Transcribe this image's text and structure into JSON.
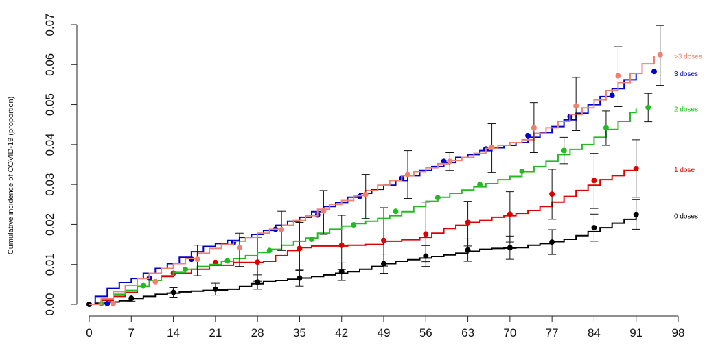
{
  "chart_data": {
    "type": "line",
    "ylabel": "Cumulative incidence of COVID-19 (proportion)",
    "xlabel": "",
    "xlim": [
      0,
      98
    ],
    "ylim": [
      0,
      0.07
    ],
    "x_ticks": [
      "0",
      "7",
      "14",
      "21",
      "28",
      "35",
      "42",
      "49",
      "56",
      "63",
      "70",
      "77",
      "84",
      "91",
      "98"
    ],
    "y_ticks": [
      "0.00",
      "0.01",
      "0.02",
      "0.03",
      "0.04",
      "0.05",
      "0.06",
      "0.07"
    ],
    "grid": false,
    "legend": "inline labels at right end of each curve",
    "series": [
      {
        "name": "0 doses",
        "color": "#000000",
        "step_x": [
          0,
          1,
          3,
          5,
          7,
          9,
          11,
          13,
          15,
          17,
          19,
          21,
          23,
          25,
          27,
          29,
          31,
          33,
          35,
          37,
          39,
          41,
          43,
          45,
          47,
          49,
          51,
          53,
          55,
          57,
          59,
          61,
          63,
          65,
          67,
          69,
          71,
          73,
          75,
          77,
          79,
          81,
          83,
          85,
          87,
          89,
          91
        ],
        "step_y": [
          0,
          0.0003,
          0.0006,
          0.0009,
          0.0015,
          0.002,
          0.0025,
          0.0028,
          0.0031,
          0.0033,
          0.0035,
          0.0036,
          0.0038,
          0.0045,
          0.0052,
          0.0057,
          0.006,
          0.0063,
          0.0066,
          0.007,
          0.0074,
          0.0078,
          0.0082,
          0.0088,
          0.0095,
          0.0102,
          0.0108,
          0.0112,
          0.0116,
          0.012,
          0.0124,
          0.0128,
          0.0133,
          0.0138,
          0.014,
          0.0141,
          0.0142,
          0.0148,
          0.0152,
          0.0157,
          0.0163,
          0.0172,
          0.0182,
          0.0192,
          0.0203,
          0.0213,
          0.0222
        ],
        "points": [
          {
            "x": 0,
            "y": 0.0,
            "lo": 0.0,
            "hi": 0.0
          },
          {
            "x": 7,
            "y": 0.0015,
            "lo": 0.0008,
            "hi": 0.0023
          },
          {
            "x": 14,
            "y": 0.003,
            "lo": 0.0018,
            "hi": 0.0042
          },
          {
            "x": 21,
            "y": 0.0038,
            "lo": 0.0023,
            "hi": 0.0053
          },
          {
            "x": 28,
            "y": 0.0056,
            "lo": 0.0038,
            "hi": 0.0074
          },
          {
            "x": 35,
            "y": 0.0066,
            "lo": 0.0046,
            "hi": 0.0086
          },
          {
            "x": 42,
            "y": 0.0082,
            "lo": 0.006,
            "hi": 0.0104
          },
          {
            "x": 49,
            "y": 0.0102,
            "lo": 0.0078,
            "hi": 0.0126
          },
          {
            "x": 56,
            "y": 0.0121,
            "lo": 0.0095,
            "hi": 0.0147
          },
          {
            "x": 63,
            "y": 0.0136,
            "lo": 0.0108,
            "hi": 0.0164
          },
          {
            "x": 70,
            "y": 0.0142,
            "lo": 0.0113,
            "hi": 0.0171
          },
          {
            "x": 77,
            "y": 0.0156,
            "lo": 0.0125,
            "hi": 0.0187
          },
          {
            "x": 84,
            "y": 0.0192,
            "lo": 0.0158,
            "hi": 0.0226
          },
          {
            "x": 91,
            "y": 0.0225,
            "lo": 0.0188,
            "hi": 0.0262
          }
        ]
      },
      {
        "name": "1 dose",
        "color": "#dd0000",
        "step_x": [
          0,
          2,
          4,
          6,
          8,
          10,
          12,
          14,
          17,
          20,
          24,
          27,
          29,
          31,
          33,
          35,
          37,
          40,
          43,
          46,
          49,
          52,
          55,
          57,
          59,
          61,
          63,
          65,
          67,
          69,
          71,
          73,
          75,
          77,
          79,
          81,
          83,
          85,
          87,
          89,
          91
        ],
        "step_y": [
          0,
          0.001,
          0.002,
          0.003,
          0.0045,
          0.006,
          0.007,
          0.0078,
          0.0088,
          0.0098,
          0.0105,
          0.0105,
          0.0108,
          0.0122,
          0.0135,
          0.0142,
          0.0146,
          0.0146,
          0.0148,
          0.015,
          0.0158,
          0.0162,
          0.0168,
          0.0178,
          0.019,
          0.0198,
          0.0205,
          0.021,
          0.0218,
          0.0222,
          0.0228,
          0.0235,
          0.0245,
          0.0256,
          0.027,
          0.0285,
          0.0298,
          0.0312,
          0.0322,
          0.0335,
          0.0338
        ],
        "points": [
          {
            "x": 14,
            "y": 0.0078,
            "lo": 0.0,
            "hi": 0.0
          },
          {
            "x": 21,
            "y": 0.0105,
            "lo": 0.0,
            "hi": 0.0
          },
          {
            "x": 28,
            "y": 0.0106,
            "lo": 0.0058,
            "hi": 0.0168
          },
          {
            "x": 35,
            "y": 0.014,
            "lo": 0.0085,
            "hi": 0.0205
          },
          {
            "x": 42,
            "y": 0.0148,
            "lo": 0.0087,
            "hi": 0.0223
          },
          {
            "x": 49,
            "y": 0.016,
            "lo": 0.0096,
            "hi": 0.0242
          },
          {
            "x": 56,
            "y": 0.0176,
            "lo": 0.0107,
            "hi": 0.0256
          },
          {
            "x": 63,
            "y": 0.0205,
            "lo": 0.0146,
            "hi": 0.0258
          },
          {
            "x": 70,
            "y": 0.0226,
            "lo": 0.0156,
            "hi": 0.0282
          },
          {
            "x": 77,
            "y": 0.0276,
            "lo": 0.0213,
            "hi": 0.0338
          },
          {
            "x": 84,
            "y": 0.031,
            "lo": 0.024,
            "hi": 0.0378
          },
          {
            "x": 91,
            "y": 0.034,
            "lo": 0.0268,
            "hi": 0.0412
          }
        ]
      },
      {
        "name": "2 doses",
        "color": "#22bb22",
        "step_x": [
          0,
          2,
          4,
          6,
          8,
          10,
          12,
          14,
          16,
          18,
          20,
          22,
          24,
          26,
          28,
          30,
          32,
          34,
          36,
          38,
          40,
          42,
          44,
          46,
          48,
          50,
          52,
          54,
          56,
          58,
          60,
          62,
          64,
          66,
          68,
          70,
          72,
          74,
          76,
          78,
          80,
          82,
          84,
          86,
          88,
          90,
          91
        ],
        "step_y": [
          0,
          0.0012,
          0.0025,
          0.0035,
          0.0045,
          0.006,
          0.0072,
          0.008,
          0.0088,
          0.0095,
          0.01,
          0.0108,
          0.0115,
          0.0122,
          0.013,
          0.0138,
          0.0148,
          0.0158,
          0.0166,
          0.0178,
          0.0188,
          0.0196,
          0.0202,
          0.0208,
          0.0215,
          0.0222,
          0.0232,
          0.0245,
          0.0258,
          0.0268,
          0.0278,
          0.0286,
          0.0294,
          0.0302,
          0.0312,
          0.032,
          0.0332,
          0.0345,
          0.0358,
          0.0375,
          0.0388,
          0.04,
          0.0418,
          0.0438,
          0.0458,
          0.048,
          0.049
        ],
        "points": [
          {
            "x": 2,
            "y": 0.0002,
            "lo": 0.0,
            "hi": 0.0
          },
          {
            "x": 9,
            "y": 0.0047,
            "lo": 0.0,
            "hi": 0.0
          },
          {
            "x": 16,
            "y": 0.0088,
            "lo": 0.0,
            "hi": 0.0
          },
          {
            "x": 23,
            "y": 0.0109,
            "lo": 0.0,
            "hi": 0.0
          },
          {
            "x": 30,
            "y": 0.0135,
            "lo": 0.0,
            "hi": 0.0
          },
          {
            "x": 37,
            "y": 0.0163,
            "lo": 0.0,
            "hi": 0.0
          },
          {
            "x": 44,
            "y": 0.0199,
            "lo": 0.0,
            "hi": 0.0
          },
          {
            "x": 51,
            "y": 0.0233,
            "lo": 0.0,
            "hi": 0.0
          },
          {
            "x": 58,
            "y": 0.0267,
            "lo": 0.0,
            "hi": 0.0
          },
          {
            "x": 65,
            "y": 0.03,
            "lo": 0.0,
            "hi": 0.0
          },
          {
            "x": 72,
            "y": 0.0333,
            "lo": 0.0,
            "hi": 0.0
          },
          {
            "x": 79,
            "y": 0.0385,
            "lo": 0.0352,
            "hi": 0.0418
          },
          {
            "x": 86,
            "y": 0.0442,
            "lo": 0.0398,
            "hi": 0.0484
          },
          {
            "x": 93,
            "y": 0.0493,
            "lo": 0.0457,
            "hi": 0.0528
          }
        ]
      },
      {
        "name": "3 doses",
        "color": "#0000cc",
        "step_x": [
          0,
          1,
          3,
          5,
          7,
          9,
          11,
          13,
          15,
          17,
          19,
          21,
          23,
          25,
          27,
          29,
          31,
          33,
          35,
          37,
          39,
          41,
          43,
          45,
          47,
          49,
          51,
          53,
          55,
          57,
          59,
          61,
          63,
          65,
          67,
          69,
          71,
          73,
          75,
          77,
          79,
          81,
          83,
          85,
          87,
          89,
          91
        ],
        "step_y": [
          0,
          0.002,
          0.004,
          0.0055,
          0.0065,
          0.0078,
          0.009,
          0.0102,
          0.0118,
          0.0132,
          0.0145,
          0.0152,
          0.016,
          0.0168,
          0.0175,
          0.0185,
          0.0198,
          0.0208,
          0.0218,
          0.0232,
          0.0245,
          0.0255,
          0.0268,
          0.0278,
          0.0288,
          0.0298,
          0.031,
          0.0322,
          0.0335,
          0.0345,
          0.0355,
          0.0368,
          0.0375,
          0.0385,
          0.0392,
          0.0398,
          0.0405,
          0.0418,
          0.043,
          0.0445,
          0.0462,
          0.0478,
          0.05,
          0.052,
          0.054,
          0.0562,
          0.0578
        ],
        "points": [
          {
            "x": 3,
            "y": 0.0002,
            "lo": 0.0,
            "hi": 0.0
          },
          {
            "x": 10,
            "y": 0.0066,
            "lo": 0.0,
            "hi": 0.0
          },
          {
            "x": 17,
            "y": 0.0113,
            "lo": 0.0,
            "hi": 0.0
          },
          {
            "x": 24,
            "y": 0.0154,
            "lo": 0.0,
            "hi": 0.0
          },
          {
            "x": 31,
            "y": 0.0188,
            "lo": 0.0,
            "hi": 0.0
          },
          {
            "x": 38,
            "y": 0.0224,
            "lo": 0.0,
            "hi": 0.0
          },
          {
            "x": 45,
            "y": 0.027,
            "lo": 0.0,
            "hi": 0.0
          },
          {
            "x": 52,
            "y": 0.0315,
            "lo": 0.0,
            "hi": 0.0
          },
          {
            "x": 59,
            "y": 0.0358,
            "lo": 0.0,
            "hi": 0.0
          },
          {
            "x": 66,
            "y": 0.0389,
            "lo": 0.0,
            "hi": 0.0
          },
          {
            "x": 73,
            "y": 0.0422,
            "lo": 0.0,
            "hi": 0.0
          },
          {
            "x": 80,
            "y": 0.047,
            "lo": 0.0,
            "hi": 0.0
          },
          {
            "x": 87,
            "y": 0.0523,
            "lo": 0.0,
            "hi": 0.0
          },
          {
            "x": 94,
            "y": 0.0583,
            "lo": 0.0,
            "hi": 0.0
          }
        ]
      },
      {
        "name": ">3 doses",
        "color": "#f08070",
        "step_x": [
          0,
          2,
          4,
          6,
          8,
          10,
          12,
          14,
          16,
          18,
          20,
          22,
          24,
          26,
          28,
          30,
          32,
          34,
          36,
          38,
          40,
          42,
          44,
          46,
          48,
          50,
          52,
          54,
          56,
          58,
          60,
          62,
          64,
          66,
          68,
          70,
          72,
          74,
          76,
          78,
          80,
          82,
          84,
          86,
          88,
          90,
          92,
          94
        ],
        "step_y": [
          0,
          0.0015,
          0.0032,
          0.0048,
          0.0065,
          0.0078,
          0.009,
          0.0102,
          0.0115,
          0.0128,
          0.014,
          0.015,
          0.0158,
          0.0168,
          0.0178,
          0.0188,
          0.0198,
          0.021,
          0.0222,
          0.0238,
          0.025,
          0.026,
          0.0272,
          0.0285,
          0.0298,
          0.031,
          0.0322,
          0.0332,
          0.0342,
          0.0352,
          0.036,
          0.0368,
          0.0378,
          0.039,
          0.0398,
          0.0405,
          0.0412,
          0.0428,
          0.0442,
          0.0458,
          0.0475,
          0.0492,
          0.0512,
          0.0535,
          0.0555,
          0.0578,
          0.0602,
          0.0622
        ],
        "points": [
          {
            "x": 4,
            "y": 0.0002,
            "lo": 0.0,
            "hi": 0.0
          },
          {
            "x": 11,
            "y": 0.0057,
            "lo": 0.0,
            "hi": 0.0
          },
          {
            "x": 18,
            "y": 0.0113,
            "lo": 0.0072,
            "hi": 0.0148
          },
          {
            "x": 25,
            "y": 0.0142,
            "lo": 0.0095,
            "hi": 0.0178
          },
          {
            "x": 32,
            "y": 0.0187,
            "lo": 0.0135,
            "hi": 0.0233
          },
          {
            "x": 39,
            "y": 0.0234,
            "lo": 0.0175,
            "hi": 0.0285
          },
          {
            "x": 46,
            "y": 0.0275,
            "lo": 0.0215,
            "hi": 0.0325
          },
          {
            "x": 53,
            "y": 0.0325,
            "lo": 0.0265,
            "hi": 0.0385
          },
          {
            "x": 60,
            "y": 0.0358,
            "lo": 0.0335,
            "hi": 0.038
          },
          {
            "x": 67,
            "y": 0.0393,
            "lo": 0.033,
            "hi": 0.0452
          },
          {
            "x": 74,
            "y": 0.0442,
            "lo": 0.038,
            "hi": 0.0505
          },
          {
            "x": 81,
            "y": 0.0497,
            "lo": 0.0435,
            "hi": 0.0568
          },
          {
            "x": 88,
            "y": 0.0572,
            "lo": 0.0495,
            "hi": 0.0645
          },
          {
            "x": 95,
            "y": 0.0625,
            "lo": 0.0548,
            "hi": 0.0698
          }
        ]
      }
    ]
  }
}
